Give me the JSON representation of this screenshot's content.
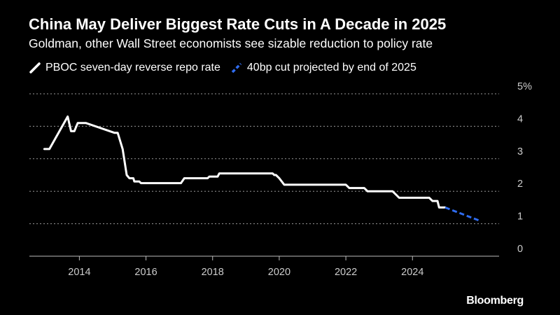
{
  "chart_data": {
    "type": "line",
    "title": "China May Deliver Biggest Rate Cuts in A Decade in 2025",
    "subtitle": "Goldman, other Wall Street economists see sizable reduction to policy rate",
    "series": [
      {
        "name": "PBOC seven-day reverse repo rate",
        "color": "#ffffff",
        "style": "solid",
        "points": [
          [
            2012.95,
            3.3
          ],
          [
            2013.1,
            3.3
          ],
          [
            2013.65,
            4.3
          ],
          [
            2013.75,
            3.85
          ],
          [
            2013.85,
            3.85
          ],
          [
            2013.95,
            4.1
          ],
          [
            2014.1,
            4.1
          ],
          [
            2014.2,
            4.1
          ],
          [
            2015.05,
            3.8
          ],
          [
            2015.15,
            3.8
          ],
          [
            2015.3,
            3.3
          ],
          [
            2015.42,
            2.5
          ],
          [
            2015.5,
            2.4
          ],
          [
            2015.62,
            2.4
          ],
          [
            2015.65,
            2.3
          ],
          [
            2015.8,
            2.3
          ],
          [
            2015.85,
            2.25
          ],
          [
            2017.05,
            2.25
          ],
          [
            2017.15,
            2.4
          ],
          [
            2017.85,
            2.4
          ],
          [
            2017.9,
            2.45
          ],
          [
            2018.15,
            2.45
          ],
          [
            2018.2,
            2.55
          ],
          [
            2019.8,
            2.55
          ],
          [
            2019.85,
            2.5
          ],
          [
            2019.9,
            2.5
          ],
          [
            2020.0,
            2.4
          ],
          [
            2020.15,
            2.2
          ],
          [
            2022.0,
            2.2
          ],
          [
            2022.1,
            2.1
          ],
          [
            2022.55,
            2.1
          ],
          [
            2022.65,
            2.0
          ],
          [
            2023.4,
            2.0
          ],
          [
            2023.5,
            1.9
          ],
          [
            2023.6,
            1.8
          ],
          [
            2024.5,
            1.8
          ],
          [
            2024.6,
            1.7
          ],
          [
            2024.75,
            1.7
          ],
          [
            2024.8,
            1.5
          ],
          [
            2024.98,
            1.5
          ]
        ]
      },
      {
        "name": "40bp cut projected by end of 2025",
        "color": "#2f6cf0",
        "style": "dashed",
        "points": [
          [
            2024.98,
            1.5
          ],
          [
            2026.0,
            1.1
          ]
        ]
      }
    ],
    "x_ticks": [
      {
        "value": 2014,
        "label": "2014"
      },
      {
        "value": 2016,
        "label": "2016"
      },
      {
        "value": 2018,
        "label": "2018"
      },
      {
        "value": 2020,
        "label": "2020"
      },
      {
        "value": 2022,
        "label": "2022"
      },
      {
        "value": 2024,
        "label": "2024"
      }
    ],
    "y_ticks": [
      {
        "value": 0,
        "label": "0"
      },
      {
        "value": 1,
        "label": "1"
      },
      {
        "value": 2,
        "label": "2"
      },
      {
        "value": 3,
        "label": "3"
      },
      {
        "value": 4,
        "label": "4"
      },
      {
        "value": 5,
        "label": "5%"
      }
    ],
    "xlim": [
      2012.5,
      2026.6
    ],
    "ylim": [
      0,
      5
    ],
    "grid": "horizontal dotted",
    "legend_position": "top-left"
  },
  "source": "Bloomberg"
}
